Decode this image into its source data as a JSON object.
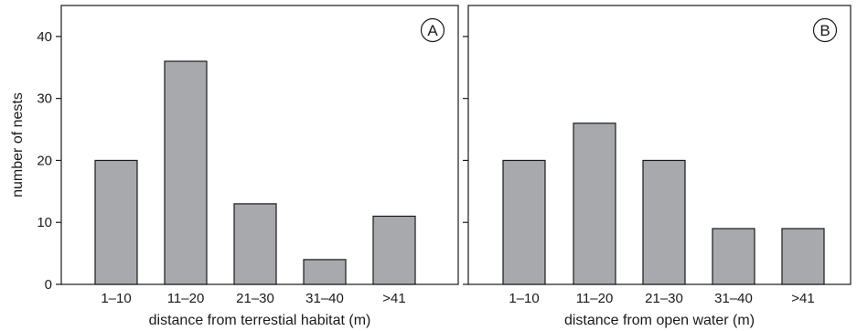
{
  "colors": {
    "bar_fill": "#a7a9ac",
    "bar_stroke": "#1a1a1a",
    "frame": "#1a1a1a"
  },
  "chart_data": [
    {
      "type": "bar",
      "panel_label": "A",
      "categories": [
        "1–10",
        "11–20",
        "21–30",
        "31–40",
        ">41"
      ],
      "values": [
        20,
        36,
        13,
        4,
        11
      ],
      "xlabel": "distance from terrestial habitat (m)",
      "ylabel": "number of nests",
      "ylim": [
        0,
        45
      ],
      "yticks": [
        0,
        10,
        20,
        30,
        40
      ],
      "grid": false
    },
    {
      "type": "bar",
      "panel_label": "B",
      "categories": [
        "1–10",
        "11–20",
        "21–30",
        "31–40",
        ">41"
      ],
      "values": [
        20,
        26,
        20,
        9,
        9
      ],
      "xlabel": "distance from open water (m)",
      "ylabel": "",
      "ylim": [
        0,
        45
      ],
      "yticks": [
        0,
        10,
        20,
        30,
        40
      ],
      "grid": false
    }
  ]
}
